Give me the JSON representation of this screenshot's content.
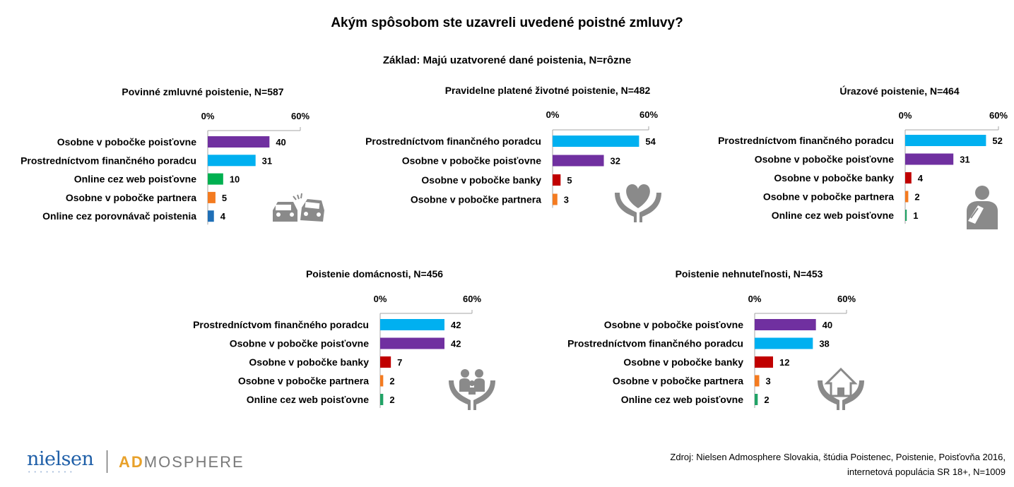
{
  "title": "Akým spôsobom ste uzavreli uvedené poistné zmluvy?",
  "subtitle": "Základ: Majú uzatvorené dané poistenia, N=rôzne",
  "colors": {
    "purple": "#7030a0",
    "cyan": "#00b0f0",
    "green": "#00b050",
    "orange": "#f47b20",
    "blue": "#1f6fb7",
    "red": "#c00000",
    "teal": "#21a366",
    "icon_gray": "#8a8a8a"
  },
  "chart_data": [
    {
      "type": "bar",
      "orientation": "horizontal",
      "title": "Povinné zmluvné poistenie, N=587",
      "xlim": [
        0,
        60
      ],
      "xticks": [
        "0%",
        "60%"
      ],
      "icon": "car-crash-icon",
      "categories": [
        "Osobne v pobočke poisťovne",
        "Prostredníctvom finančného poradcu",
        "Online cez web poisťovne",
        "Osobne v pobočke partnera",
        "Online cez porovnávač poistenia"
      ],
      "values": [
        40,
        31,
        10,
        5,
        4
      ],
      "colors": [
        "#7030a0",
        "#00b0f0",
        "#00b050",
        "#f47b20",
        "#1f6fb7"
      ]
    },
    {
      "type": "bar",
      "orientation": "horizontal",
      "title": "Pravidelne platené životné poistenie, N=482",
      "xlim": [
        0,
        60
      ],
      "xticks": [
        "0%",
        "60%"
      ],
      "icon": "heart-in-hands-icon",
      "categories": [
        "Prostredníctvom finančného poradcu",
        "Osobne v pobočke poisťovne",
        "Osobne v pobočke banky",
        "Osobne v pobočke partnera"
      ],
      "values": [
        54,
        32,
        5,
        3
      ],
      "colors": [
        "#00b0f0",
        "#7030a0",
        "#c00000",
        "#f47b20"
      ]
    },
    {
      "type": "bar",
      "orientation": "horizontal",
      "title": "Úrazové poistenie, N=464",
      "xlim": [
        0,
        60
      ],
      "xticks": [
        "0%",
        "60%"
      ],
      "icon": "injured-person-icon",
      "categories": [
        "Prostredníctvom finančného poradcu",
        "Osobne v pobočke poisťovne",
        "Osobne v pobočke banky",
        "Osobne v pobočke partnera",
        "Online cez web poisťovne"
      ],
      "values": [
        52,
        31,
        4,
        2,
        1
      ],
      "colors": [
        "#00b0f0",
        "#7030a0",
        "#c00000",
        "#f47b20",
        "#21a366"
      ]
    },
    {
      "type": "bar",
      "orientation": "horizontal",
      "title": "Poistenie domácnosti, N=456",
      "xlim": [
        0,
        60
      ],
      "xticks": [
        "0%",
        "60%"
      ],
      "icon": "family-in-hands-icon",
      "categories": [
        "Prostredníctvom finančného poradcu",
        "Osobne v pobočke poisťovne",
        "Osobne v pobočke banky",
        "Osobne v pobočke partnera",
        "Online cez web poisťovne"
      ],
      "values": [
        42,
        42,
        7,
        2,
        2
      ],
      "colors": [
        "#00b0f0",
        "#7030a0",
        "#c00000",
        "#f47b20",
        "#21a366"
      ]
    },
    {
      "type": "bar",
      "orientation": "horizontal",
      "title": "Poistenie nehnuteľnosti, N=453",
      "xlim": [
        0,
        60
      ],
      "xticks": [
        "0%",
        "60%"
      ],
      "icon": "house-in-hands-icon",
      "categories": [
        "Osobne v pobočke poisťovne",
        "Prostredníctvom finančného poradcu",
        "Osobne v pobočke banky",
        "Osobne v pobočke partnera",
        "Online cez web poisťovne"
      ],
      "values": [
        40,
        38,
        12,
        3,
        2
      ],
      "colors": [
        "#7030a0",
        "#00b0f0",
        "#c00000",
        "#f47b20",
        "#21a366"
      ]
    }
  ],
  "logo": {
    "nielsen": "nielsen",
    "dots": "••••••••",
    "ad": "AD",
    "mosphere": "MOSPHERE"
  },
  "source": {
    "line1": "Zdroj: Nielsen Admosphere Slovakia, štúdia Poistenec, Poistenie, Poisťovňa 2016,",
    "line2": "internetová populácia SR 18+, N=1009"
  }
}
